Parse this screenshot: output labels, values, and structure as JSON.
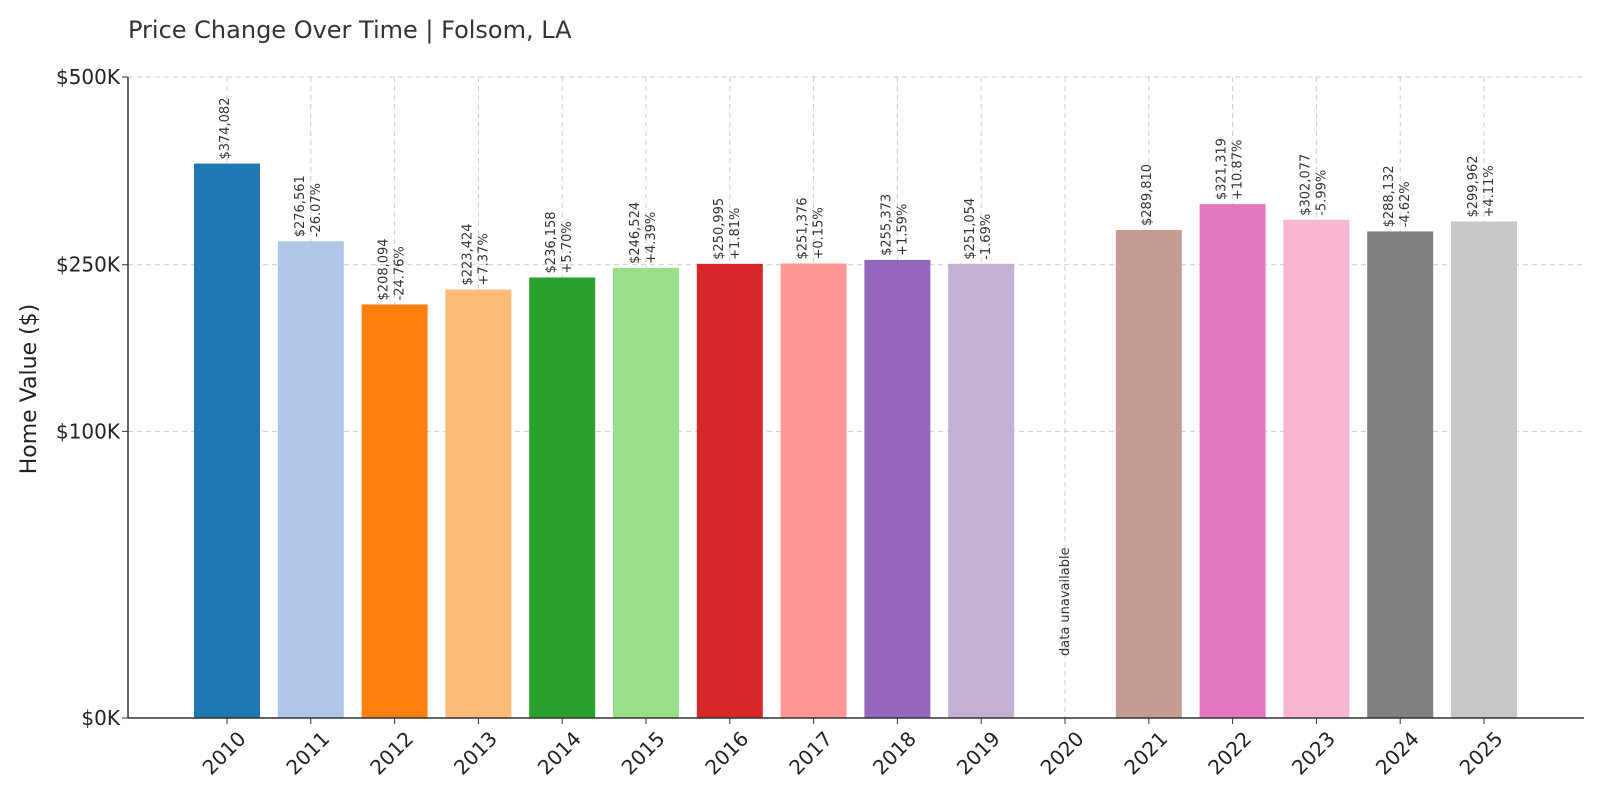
{
  "chart_data": {
    "type": "bar",
    "title": "Price Change Over Time | Folsom, LA",
    "ylabel": "Home Value ($)",
    "xlabel": "",
    "categories": [
      "2010",
      "2011",
      "2012",
      "2013",
      "2014",
      "2015",
      "2016",
      "2017",
      "2018",
      "2019",
      "2020",
      "2021",
      "2022",
      "2023",
      "2024",
      "2025"
    ],
    "values": [
      374082,
      276561,
      208094,
      223424,
      236158,
      246524,
      250995,
      251376,
      255373,
      251054,
      null,
      289810,
      321319,
      302077,
      288132,
      299962
    ],
    "value_labels": [
      "$374,082",
      "$276,561",
      "$208,094",
      "$223,424",
      "$236,158",
      "$246,524",
      "$250,995",
      "$251,376",
      "$255,373",
      "$251,054",
      "",
      "$289,810",
      "$321,319",
      "$302,077",
      "$288,132",
      "$299,962"
    ],
    "change_labels": [
      "",
      "-26.07%",
      "-24.76%",
      "+7.37%",
      "+5.70%",
      "+4.39%",
      "+1.81%",
      "+0.15%",
      "+1.59%",
      "-1.69%",
      "",
      "",
      "+10.87%",
      "-5.99%",
      "-4.62%",
      "+4.11%"
    ],
    "missing_label": "data unavailable",
    "colors": [
      "#1f77b4",
      "#aec7e8",
      "#ff7f0e",
      "#ffbb78",
      "#2ca02c",
      "#98df8a",
      "#d62728",
      "#ff9896",
      "#9467bd",
      "#c5b0d5",
      "#8c564b",
      "#c49c94",
      "#e377c2",
      "#f7b6d2",
      "#7f7f7f",
      "#c7c7c7"
    ],
    "yticks": [
      0,
      100000,
      250000,
      500000
    ],
    "ytick_labels": [
      "$0K",
      "$100K",
      "$250K",
      "$500K"
    ],
    "yscale": "sqrt",
    "ylim": [
      0,
      500000
    ],
    "grid": true
  }
}
